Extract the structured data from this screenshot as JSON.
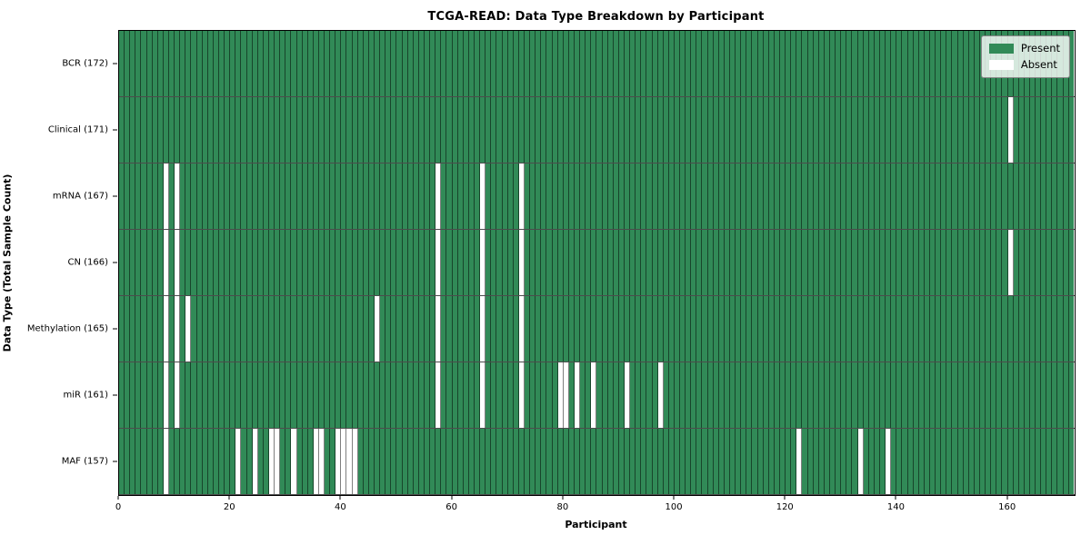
{
  "title": "TCGA-READ: Data Type Breakdown by Participant",
  "xlabel": "Participant",
  "ylabel": "Data Type (Total Sample Count)",
  "legend": {
    "present_label": "Present",
    "absent_label": "Absent",
    "position": "upper-right"
  },
  "colors": {
    "present": "#318a57",
    "absent": "#ffffff",
    "cell_edge": "rgba(0,0,0,0.5)",
    "row_boundary": "rgba(0,0,0,0.7)",
    "spine": "#000000"
  },
  "chart_data": {
    "type": "heatmap",
    "title": "TCGA-READ: Data Type Breakdown by Participant",
    "xlabel": "Participant",
    "ylabel": "Data Type (Total Sample Count)",
    "x_ticks": [
      0,
      20,
      40,
      60,
      80,
      100,
      120,
      140,
      160
    ],
    "xlim": [
      0,
      172
    ],
    "total_participants": 172,
    "grid": false,
    "legend_position": "upper right",
    "value_legend": {
      "1": "Present",
      "0": "Absent"
    },
    "rows": [
      {
        "label": "BCR (172)",
        "data_type": "BCR",
        "sample_count": 172,
        "absent_participants": []
      },
      {
        "label": "Clinical (171)",
        "data_type": "Clinical",
        "sample_count": 171,
        "absent_participants": [
          160
        ]
      },
      {
        "label": "mRNA (167)",
        "data_type": "mRNA",
        "sample_count": 167,
        "absent_participants": [
          8,
          10,
          57,
          65,
          72
        ]
      },
      {
        "label": "CN (166)",
        "data_type": "CN",
        "sample_count": 166,
        "absent_participants": [
          8,
          10,
          57,
          65,
          72,
          160
        ]
      },
      {
        "label": "Methylation (165)",
        "data_type": "Methylation",
        "sample_count": 165,
        "absent_participants": [
          8,
          10,
          12,
          46,
          57,
          65,
          72
        ]
      },
      {
        "label": "miR (161)",
        "data_type": "miR",
        "sample_count": 161,
        "absent_participants": [
          8,
          10,
          57,
          65,
          72,
          79,
          80,
          82,
          85,
          91,
          97
        ]
      },
      {
        "label": "MAF (157)",
        "data_type": "MAF",
        "sample_count": 157,
        "absent_participants": [
          8,
          21,
          24,
          27,
          28,
          31,
          35,
          36,
          39,
          40,
          41,
          42,
          122,
          133,
          138
        ]
      }
    ]
  }
}
